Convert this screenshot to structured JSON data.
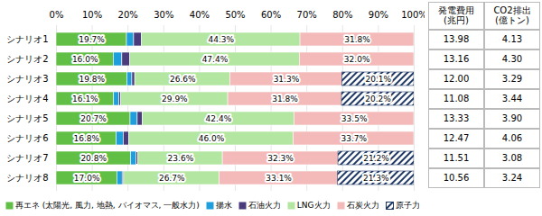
{
  "chart_data": {
    "type": "bar",
    "orientation": "horizontal",
    "stacked": true,
    "data_labels": true,
    "grid": true,
    "legend": "bottom",
    "categories": [
      "シナリオ1",
      "シナリオ2",
      "シナリオ3",
      "シナリオ4",
      "シナリオ5",
      "シナリオ6",
      "シナリオ7",
      "シナリオ8"
    ],
    "xlim": [
      0,
      100
    ],
    "xticks": [
      {
        "value": 0,
        "label": "0%"
      },
      {
        "value": 10,
        "label": "10%"
      },
      {
        "value": 20,
        "label": "20%"
      },
      {
        "value": 30,
        "label": "30%"
      },
      {
        "value": 40,
        "label": "40%"
      },
      {
        "value": 50,
        "label": "50%"
      },
      {
        "value": 60,
        "label": "60%"
      },
      {
        "value": 70,
        "label": "70%"
      },
      {
        "value": 80,
        "label": "80%"
      },
      {
        "value": 90,
        "label": "90%"
      },
      {
        "value": 100,
        "label": "100%"
      }
    ],
    "series": [
      {
        "name": "再エネ (太陽光, 風力, 地熱, バイオマス, 一般水力)",
        "color": "#62bf45",
        "values": [
          19.7,
          16.0,
          19.8,
          16.1,
          20.7,
          16.8,
          20.8,
          17.0
        ],
        "value_labels": [
          "19.7%",
          "16.0%",
          "19.8%",
          "16.1%",
          "20.7%",
          "16.8%",
          "20.8%",
          "17.0%"
        ]
      },
      {
        "name": "揚水",
        "color": "#1e9fdc",
        "values": [
          2.0,
          2.4,
          1.4,
          1.5,
          2.0,
          2.0,
          1.6,
          1.5
        ]
      },
      {
        "name": "石油火力",
        "color": "#4a3c7c",
        "values": [
          2.2,
          2.2,
          0.8,
          0.5,
          1.4,
          1.5,
          0.5,
          0.4
        ]
      },
      {
        "name": "LNG火力",
        "color": "#b3e6a1",
        "values": [
          44.3,
          47.4,
          26.6,
          29.9,
          42.4,
          46.0,
          23.6,
          26.7
        ],
        "value_labels": [
          "44.3%",
          "47.4%",
          "26.6%",
          "29.9%",
          "42.4%",
          "46.0%",
          "23.6%",
          "26.7%"
        ]
      },
      {
        "name": "石炭火力",
        "color": "#f4b9b9",
        "values": [
          31.8,
          32.0,
          31.3,
          31.8,
          33.5,
          33.7,
          32.3,
          33.1
        ],
        "value_labels": [
          "31.8%",
          "32.0%",
          "31.3%",
          "31.8%",
          "33.5%",
          "33.7%",
          "32.3%",
          "33.1%"
        ]
      },
      {
        "name": "原子力",
        "color": "#1f3864",
        "marker": "hatch",
        "values": [
          0,
          0,
          20.1,
          20.2,
          0,
          0,
          21.2,
          21.3
        ],
        "value_labels": [
          null,
          null,
          "20.1%",
          "20.2%",
          null,
          null,
          "21.2%",
          "21.3%"
        ]
      }
    ]
  },
  "table": {
    "columns": [
      "発電費用\n(兆円)",
      "CO2排出\n(億トン)"
    ],
    "rows": [
      [
        "13.98",
        "4.13"
      ],
      [
        "13.16",
        "4.30"
      ],
      [
        "12.00",
        "3.29"
      ],
      [
        "11.08",
        "3.44"
      ],
      [
        "13.33",
        "3.90"
      ],
      [
        "12.47",
        "4.06"
      ],
      [
        "11.51",
        "3.08"
      ],
      [
        "10.56",
        "3.24"
      ]
    ]
  }
}
